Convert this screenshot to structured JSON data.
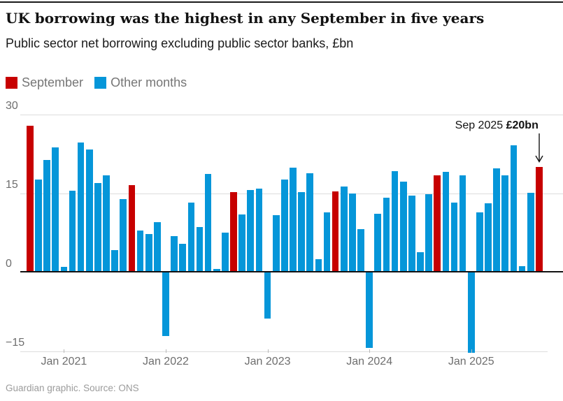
{
  "title": "UK borrowing was the highest in any September in five years",
  "subtitle": "Public sector net borrowing excluding public sector banks, £bn",
  "legend": {
    "september": "September",
    "other": "Other months"
  },
  "annotation": {
    "prefix": "Sep 2025 ",
    "value": "£20bn"
  },
  "footer": "Guardian graphic. Source: ONS",
  "chart_data": {
    "type": "bar",
    "title": "UK borrowing was the highest in any September in five years",
    "ylabel": "£bn",
    "ylim": [
      -15.2,
      30
    ],
    "colors": {
      "september": "#c70000",
      "other": "#0596d9"
    },
    "yticks": [
      {
        "v": 30,
        "label": "30"
      },
      {
        "v": 15,
        "label": "15"
      },
      {
        "v": 0,
        "label": "0"
      },
      {
        "v": -15,
        "label": "−15"
      }
    ],
    "xticks": [
      {
        "i": 4,
        "label": "Jan 2021"
      },
      {
        "i": 16,
        "label": "Jan 2022"
      },
      {
        "i": 28,
        "label": "Jan 2023"
      },
      {
        "i": 40,
        "label": "Jan 2024"
      },
      {
        "i": 52,
        "label": "Jan 2025"
      }
    ],
    "points": [
      {
        "m": "Sep 2020",
        "v": 27.9,
        "sep": true
      },
      {
        "m": "Oct 2020",
        "v": 17.7,
        "sep": false
      },
      {
        "m": "Nov 2020",
        "v": 21.4,
        "sep": false
      },
      {
        "m": "Dec 2020",
        "v": 23.8,
        "sep": false
      },
      {
        "m": "Jan 2021",
        "v": 1.0,
        "sep": false
      },
      {
        "m": "Feb 2021",
        "v": 15.5,
        "sep": false
      },
      {
        "m": "Mar 2021",
        "v": 24.7,
        "sep": false
      },
      {
        "m": "Apr 2021",
        "v": 23.3,
        "sep": false
      },
      {
        "m": "May 2021",
        "v": 17.0,
        "sep": false
      },
      {
        "m": "Jun 2021",
        "v": 18.5,
        "sep": false
      },
      {
        "m": "Jul 2021",
        "v": 4.2,
        "sep": false
      },
      {
        "m": "Aug 2021",
        "v": 13.9,
        "sep": false
      },
      {
        "m": "Sep 2021",
        "v": 16.6,
        "sep": true
      },
      {
        "m": "Oct 2021",
        "v": 7.9,
        "sep": false
      },
      {
        "m": "Nov 2021",
        "v": 7.3,
        "sep": false
      },
      {
        "m": "Dec 2021",
        "v": 9.6,
        "sep": false
      },
      {
        "m": "Jan 2022",
        "v": -12.1,
        "sep": false
      },
      {
        "m": "Feb 2022",
        "v": 6.9,
        "sep": false
      },
      {
        "m": "Mar 2022",
        "v": 5.4,
        "sep": false
      },
      {
        "m": "Apr 2022",
        "v": 13.3,
        "sep": false
      },
      {
        "m": "May 2022",
        "v": 8.6,
        "sep": false
      },
      {
        "m": "Jun 2022",
        "v": 18.7,
        "sep": false
      },
      {
        "m": "Jul 2022",
        "v": 0.6,
        "sep": false
      },
      {
        "m": "Aug 2022",
        "v": 7.6,
        "sep": false
      },
      {
        "m": "Sep 2022",
        "v": 15.2,
        "sep": true
      },
      {
        "m": "Oct 2022",
        "v": 11.0,
        "sep": false
      },
      {
        "m": "Nov 2022",
        "v": 15.6,
        "sep": false
      },
      {
        "m": "Dec 2022",
        "v": 15.9,
        "sep": false
      },
      {
        "m": "Jan 2023",
        "v": -8.8,
        "sep": false
      },
      {
        "m": "Feb 2023",
        "v": 10.9,
        "sep": false
      },
      {
        "m": "Mar 2023",
        "v": 17.6,
        "sep": false
      },
      {
        "m": "Apr 2023",
        "v": 19.9,
        "sep": false
      },
      {
        "m": "May 2023",
        "v": 15.3,
        "sep": false
      },
      {
        "m": "Jun 2023",
        "v": 18.8,
        "sep": false
      },
      {
        "m": "Jul 2023",
        "v": 2.5,
        "sep": false
      },
      {
        "m": "Aug 2023",
        "v": 11.4,
        "sep": false
      },
      {
        "m": "Sep 2023",
        "v": 15.4,
        "sep": true
      },
      {
        "m": "Oct 2023",
        "v": 16.3,
        "sep": false
      },
      {
        "m": "Nov 2023",
        "v": 15.0,
        "sep": false
      },
      {
        "m": "Dec 2023",
        "v": 8.2,
        "sep": false
      },
      {
        "m": "Jan 2024",
        "v": -14.3,
        "sep": false
      },
      {
        "m": "Feb 2024",
        "v": 11.2,
        "sep": false
      },
      {
        "m": "Mar 2024",
        "v": 14.2,
        "sep": false
      },
      {
        "m": "Apr 2024",
        "v": 19.2,
        "sep": false
      },
      {
        "m": "May 2024",
        "v": 17.3,
        "sep": false
      },
      {
        "m": "Jun 2024",
        "v": 14.6,
        "sep": false
      },
      {
        "m": "Jul 2024",
        "v": 3.8,
        "sep": false
      },
      {
        "m": "Aug 2024",
        "v": 14.9,
        "sep": false
      },
      {
        "m": "Sep 2024",
        "v": 18.4,
        "sep": true
      },
      {
        "m": "Oct 2024",
        "v": 19.1,
        "sep": false
      },
      {
        "m": "Nov 2024",
        "v": 13.3,
        "sep": false
      },
      {
        "m": "Dec 2024",
        "v": 18.4,
        "sep": false
      },
      {
        "m": "Jan 2025",
        "v": -15.2,
        "sep": false
      },
      {
        "m": "Feb 2025",
        "v": 11.4,
        "sep": false
      },
      {
        "m": "Mar 2025",
        "v": 13.2,
        "sep": false
      },
      {
        "m": "Apr 2025",
        "v": 19.8,
        "sep": false
      },
      {
        "m": "May 2025",
        "v": 18.4,
        "sep": false
      },
      {
        "m": "Jun 2025",
        "v": 24.2,
        "sep": false
      },
      {
        "m": "Jul 2025",
        "v": 1.2,
        "sep": false
      },
      {
        "m": "Aug 2025",
        "v": 15.1,
        "sep": false
      },
      {
        "m": "Sep 2025",
        "v": 20.0,
        "sep": true
      }
    ]
  }
}
